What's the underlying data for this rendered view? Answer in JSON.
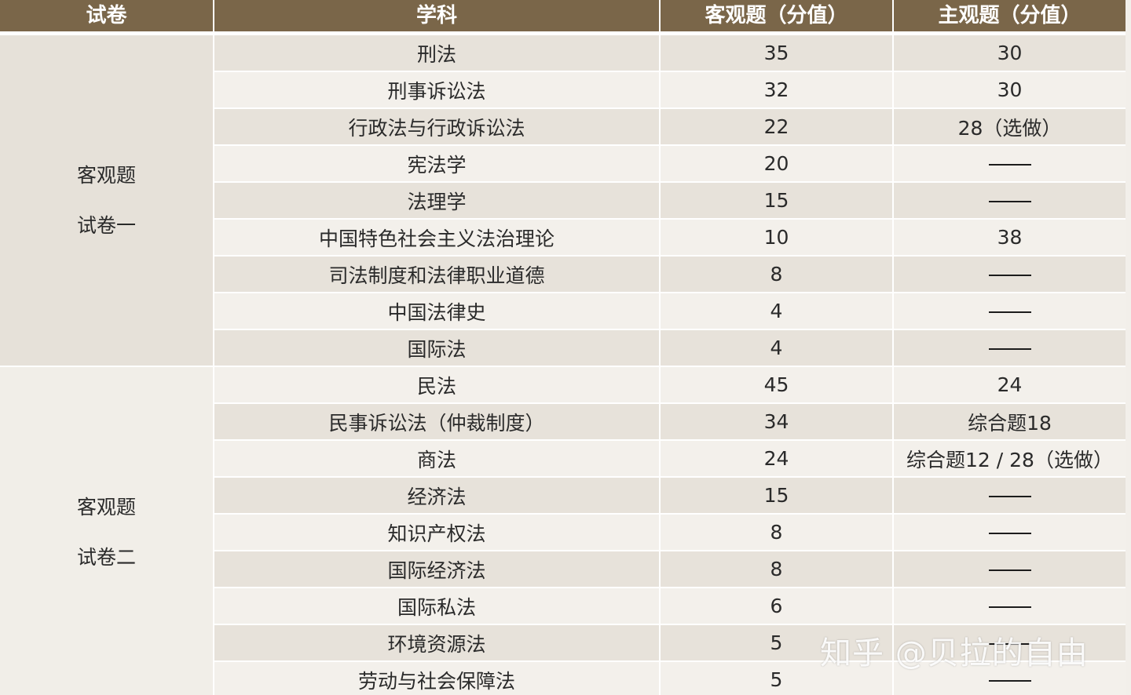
{
  "headers": [
    "试卷",
    "学科",
    "客观题（分值）",
    "主观题（分值）"
  ],
  "groups": [
    {
      "label_line1": "客观题",
      "label_line2": "试卷一",
      "rows": [
        {
          "subject": "刑法",
          "objective": "35",
          "subjective": "30"
        },
        {
          "subject": "刑事诉讼法",
          "objective": "32",
          "subjective": "30"
        },
        {
          "subject": "行政法与行政诉讼法",
          "objective": "22",
          "subjective": "28（选做）"
        },
        {
          "subject": "宪法学",
          "objective": "20",
          "subjective": "——"
        },
        {
          "subject": "法理学",
          "objective": "15",
          "subjective": "——"
        },
        {
          "subject": "中国特色社会主义法治理论",
          "objective": "10",
          "subjective": "38"
        },
        {
          "subject": "司法制度和法律职业道德",
          "objective": "8",
          "subjective": "——"
        },
        {
          "subject": "中国法律史",
          "objective": "4",
          "subjective": "——"
        },
        {
          "subject": "国际法",
          "objective": "4",
          "subjective": "——"
        }
      ]
    },
    {
      "label_line1": "客观题",
      "label_line2": "试卷二",
      "rows": [
        {
          "subject": "民法",
          "objective": "45",
          "subjective": "24"
        },
        {
          "subject": "民事诉讼法（仲裁制度）",
          "objective": "34",
          "subjective": "综合题18"
        },
        {
          "subject": "商法",
          "objective": "24",
          "subjective": "综合题12 / 28（选做）"
        },
        {
          "subject": "经济法",
          "objective": "15",
          "subjective": "——"
        },
        {
          "subject": "知识产权法",
          "objective": "8",
          "subjective": "——"
        },
        {
          "subject": "国际经济法",
          "objective": "8",
          "subjective": "——"
        },
        {
          "subject": "国际私法",
          "objective": "6",
          "subjective": "——"
        },
        {
          "subject": "环境资源法",
          "objective": "5",
          "subjective": "——"
        },
        {
          "subject": "劳动与社会保障法",
          "objective": "5",
          "subjective": "——"
        }
      ]
    }
  ],
  "watermark": "知乎 @贝拉的自由",
  "colors": {
    "header_bg": "#7a6649",
    "row_dark": "#e7e2da",
    "row_light": "#f3f0eb"
  }
}
